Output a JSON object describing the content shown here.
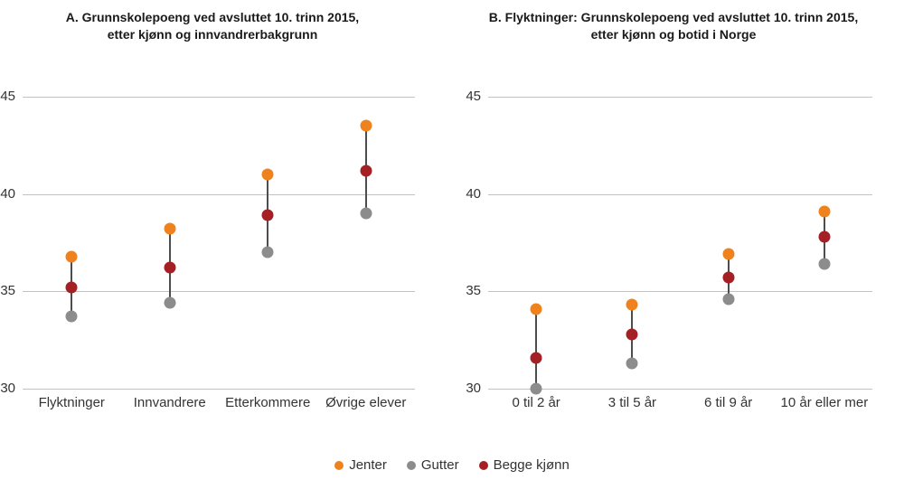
{
  "legend": {
    "items": [
      {
        "name": "jenter",
        "label": "Jenter",
        "color": "#F0821E"
      },
      {
        "name": "gutter",
        "label": "Gutter",
        "color": "#8C8C8C"
      },
      {
        "name": "begge-kjonn",
        "label": "Begge kjønn",
        "color": "#A42024"
      }
    ]
  },
  "chart_data": [
    {
      "type": "scatter",
      "panel": "A",
      "title": "A. Grunnskolepoeng ved avsluttet 10. trinn 2015,\netter kjønn og innvandrerbakgrunn",
      "categories": [
        "Flyktninger",
        "Innvandrere",
        "Etterkommere",
        "Øvrige elever"
      ],
      "series": [
        {
          "name": "Jenter",
          "color": "#F0821E",
          "values": [
            36.8,
            38.2,
            41.0,
            43.5
          ]
        },
        {
          "name": "Gutter",
          "color": "#8C8C8C",
          "values": [
            33.7,
            34.4,
            37.0,
            39.0
          ]
        },
        {
          "name": "Begge kjønn",
          "color": "#A42024",
          "values": [
            35.2,
            36.2,
            38.9,
            41.2
          ]
        }
      ],
      "ylim": [
        30,
        45
      ],
      "yticks": [
        30,
        35,
        40,
        45
      ],
      "grid": true,
      "legend_position": "bottom-shared"
    },
    {
      "type": "scatter",
      "panel": "B",
      "title": "B. Flyktninger: Grunnskolepoeng ved avsluttet 10. trinn 2015,\netter kjønn og botid i Norge",
      "categories": [
        "0 til 2 år",
        "3 til 5 år",
        "6 til 9 år",
        "10 år eller mer"
      ],
      "series": [
        {
          "name": "Jenter",
          "color": "#F0821E",
          "values": [
            34.1,
            34.3,
            36.9,
            39.1
          ]
        },
        {
          "name": "Gutter",
          "color": "#8C8C8C",
          "values": [
            30.0,
            31.3,
            34.6,
            36.4
          ]
        },
        {
          "name": "Begge kjønn",
          "color": "#A42024",
          "values": [
            31.6,
            32.8,
            35.7,
            37.8
          ]
        }
      ],
      "ylim": [
        30,
        45
      ],
      "yticks": [
        30,
        35,
        40,
        45
      ],
      "grid": true,
      "legend_position": "bottom-shared"
    }
  ]
}
